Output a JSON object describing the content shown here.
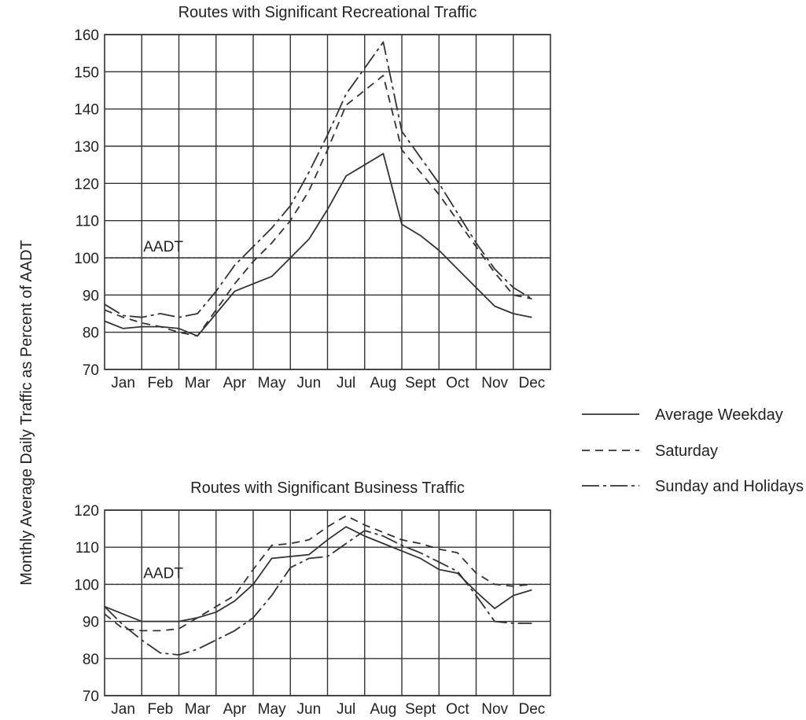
{
  "y_axis_label": "Monthly Average Daily Traffic as Percent of AADT",
  "legend": {
    "items": [
      {
        "label": "Average Weekday",
        "style": "solid"
      },
      {
        "label": "Saturday",
        "style": "dashed"
      },
      {
        "label": "Sunday and Holidays",
        "style": "dashdot"
      }
    ]
  },
  "chart_data": [
    {
      "type": "line",
      "title": "Routes with Significant Recreational Traffic",
      "categories": [
        "Jan",
        "Feb",
        "Mar",
        "Apr",
        "May",
        "Jun",
        "Jul",
        "Aug",
        "Sept",
        "Oct",
        "Nov",
        "Dec"
      ],
      "ylim": [
        70,
        160
      ],
      "yticks": [
        70,
        80,
        90,
        100,
        110,
        120,
        130,
        140,
        150,
        160
      ],
      "grid": true,
      "reference_line": {
        "label": "AADT",
        "value": 100
      },
      "x": [
        0,
        0.5,
        1,
        1.5,
        2,
        2.5,
        3,
        3.5,
        4,
        4.5,
        5,
        5.5,
        6,
        6.5,
        7,
        7.5,
        8,
        8.5,
        9,
        9.5,
        10,
        10.5,
        11,
        11.5
      ],
      "series": [
        {
          "name": "Average Weekday",
          "style": "solid",
          "values": [
            83,
            81,
            81.5,
            81.5,
            81,
            79,
            85,
            91,
            93,
            95,
            100,
            105,
            113,
            122,
            125,
            128,
            109,
            106,
            102,
            97,
            92,
            87,
            85,
            84
          ]
        },
        {
          "name": "Saturday",
          "style": "dashed",
          "values": [
            86,
            84,
            82.5,
            81.5,
            80,
            79,
            86,
            93,
            99,
            104,
            110,
            118,
            129,
            141,
            145,
            149,
            129,
            123,
            117,
            110,
            103,
            96,
            90,
            89
          ]
        },
        {
          "name": "Sunday and Holidays",
          "style": "dashdot",
          "values": [
            87.5,
            84.5,
            84,
            85,
            84,
            85,
            91,
            98,
            103,
            108,
            114,
            123,
            133,
            144,
            151,
            158,
            134,
            127,
            120,
            112,
            104,
            97,
            92,
            89
          ]
        }
      ]
    },
    {
      "type": "line",
      "title": "Routes with Significant Business Traffic",
      "categories": [
        "Jan",
        "Feb",
        "Mar",
        "Apr",
        "May",
        "Jun",
        "Jul",
        "Aug",
        "Sept",
        "Oct",
        "Nov",
        "Dec"
      ],
      "ylim": [
        70,
        120
      ],
      "yticks": [
        70,
        80,
        90,
        100,
        110,
        120
      ],
      "grid": true,
      "reference_line": {
        "label": "AADT",
        "value": 100
      },
      "x": [
        0,
        0.5,
        1,
        1.5,
        2,
        2.5,
        3,
        3.5,
        4,
        4.5,
        5,
        5.5,
        6,
        6.5,
        7,
        7.5,
        8,
        8.5,
        9,
        9.5,
        10,
        10.5,
        11,
        11.5
      ],
      "series": [
        {
          "name": "Average Weekday",
          "style": "solid",
          "values": [
            94,
            92,
            90,
            90,
            90,
            91,
            92.5,
            95.5,
            100,
            107,
            107.5,
            108,
            112,
            115.5,
            113,
            111,
            109,
            107,
            104,
            103,
            98,
            93.5,
            97,
            98.5
          ]
        },
        {
          "name": "Saturday",
          "style": "dashed",
          "values": [
            92,
            88,
            87.5,
            87.5,
            88,
            91,
            94,
            97,
            104,
            110.5,
            111,
            112,
            115.5,
            118.5,
            116,
            114,
            112,
            111,
            109.5,
            108.5,
            103,
            100,
            99.5,
            100
          ]
        },
        {
          "name": "Sunday and Holidays",
          "style": "dashdot",
          "values": [
            94,
            89,
            85,
            81.5,
            81,
            82.5,
            85,
            87.5,
            91,
            97,
            104.5,
            107,
            107.5,
            111,
            114.5,
            113,
            110.5,
            108.5,
            106,
            103.5,
            97,
            90,
            89.5,
            89.5
          ]
        }
      ]
    }
  ]
}
